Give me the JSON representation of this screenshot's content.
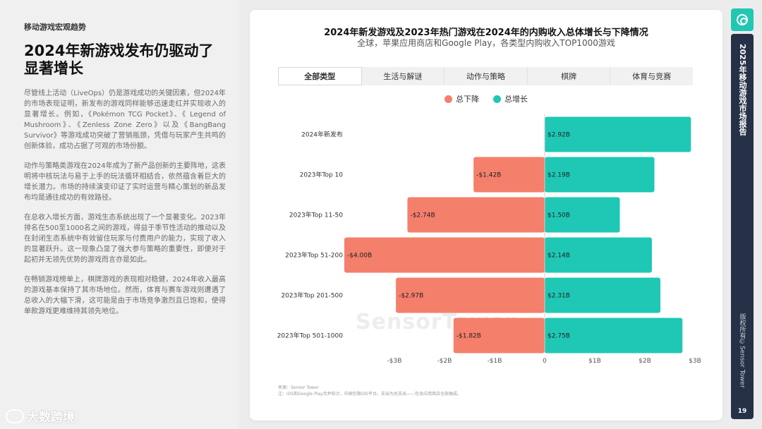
{
  "left_panel": {
    "kicker": "移动游戏宏观趋势",
    "headline": "2024年新游戏发布仍驱动了显著增长",
    "paragraphs": [
      "尽管线上活动（LiveOps）仍是游戏成功的关键因素，但2024年的市场表现证明，新发布的游戏同样能够迅速走红并实现收入的显著增长。例如，《Pokémon TCG Pocket》、《 Legend of Mushroom》、《Zenless Zone Zero》以及《BangBang Survivor》等游戏成功突破了营销瓶颈，凭借与玩家产生共鸣的创新体验，成功占据了可观的市场份额。",
      "动作与策略类游戏在2024年成为了新产品创新的主要阵地，这表明将中核玩法与易于上手的玩法循环相结合，依然蕴含着巨大的增长潜力。市场的持续演变印证了实时运营与精心策划的新品发布均是通往成功的有效路径。",
      "在总收入增长方面，游戏生态系统出现了一个显著变化。2023年排名在500至1000名之间的游戏，得益于季节性活动的推动以及在封闭生态系统中有效留住玩家与付费用户的能力，实现了收入的显著跃升。这一现象凸显了强大参与策略的重要性，即便对于起初并无领先优势的游戏而言亦是如此。",
      "在畅销游戏榜单上，棋牌游戏的表现相对稳健，2024年收入最高的游戏基本保持了其市场地位。然而，体育与赛车游戏则遭遇了总收入的大幅下滑，这可能是由于市场竞争激烈且已饱和，使得单款游戏更难维持其领先地位。"
    ],
    "brand": "大数跨境"
  },
  "chart_header": {
    "title": "2024年新发游戏及2023年热门游戏在2024年的内购收入总体增长与下降情况",
    "subtitle": "全球，苹果应用商店和Google Play，各类型内购收入TOP1000游戏"
  },
  "tabs": [
    {
      "label": "全部类型",
      "active": true
    },
    {
      "label": "生活与解谜",
      "active": false
    },
    {
      "label": "动作与策略",
      "active": false
    },
    {
      "label": "棋牌",
      "active": false
    },
    {
      "label": "体育与竞赛",
      "active": false
    }
  ],
  "colors": {
    "decline": "#f47f6b",
    "growth": "#1ec8b4",
    "strip": "#263147"
  },
  "chart_data": {
    "type": "bar",
    "orientation": "horizontal-diverging",
    "title": "2024年新发游戏及2023年热门游戏在2024年的内购收入总体增长与下降情况",
    "subtitle": "全球，苹果应用商店和Google Play，各类型内购收入TOP1000游戏",
    "categories": [
      "2024年新发布",
      "2023年Top 10",
      "2023年Top 11-50",
      "2023年Top 51-200",
      "2023年Top 201-500",
      "2023年Top 501-1000"
    ],
    "series": [
      {
        "name": "总下降",
        "values": [
          0,
          -1.42,
          -2.74,
          -4.0,
          -2.97,
          -1.82
        ],
        "labels": [
          "",
          "-$1.42B",
          "-$2.74B",
          "-$4.00B",
          "-$2.97B",
          "-$1.82B"
        ]
      },
      {
        "name": "总增长",
        "values": [
          2.92,
          2.19,
          1.5,
          2.14,
          2.31,
          2.75
        ],
        "labels": [
          "$2.92B",
          "$2.19B",
          "$1.50B",
          "$2.14B",
          "$2.31B",
          "$2.75B"
        ]
      }
    ],
    "xlim": [
      -4,
      3
    ],
    "ticks": [
      -3,
      -2,
      -1,
      0,
      1,
      2,
      3
    ],
    "tick_labels": [
      "-$3B",
      "-$2B",
      "-$1B",
      "0",
      "$1B",
      "$2B",
      "$3B"
    ],
    "legend_position": "top-center",
    "grid": false
  },
  "source": {
    "line1": "来源：Sensor Tower",
    "line2": "注：iOS和Google Play合并统计。中国仅限iOS平台。支出为总支出——包含应用商店全部抽成。"
  },
  "watermark": "SensorTower",
  "right_strip": {
    "title": "2025年移动游戏市场报告",
    "copyright": "版权所有©Sensor Tower",
    "page": "19"
  }
}
